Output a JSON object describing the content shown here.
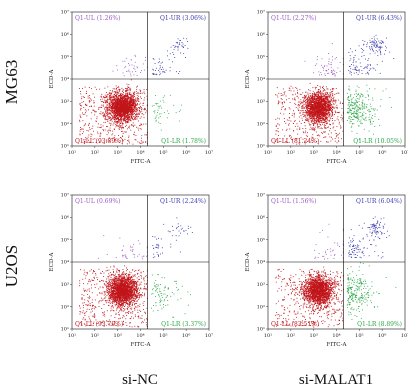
{
  "row_labels": [
    "MG63",
    "U2OS"
  ],
  "column_labels": [
    "si-NC",
    "si-MALAT1"
  ],
  "colors": {
    "UL": "#9b59c5",
    "UR": "#3c3cb0",
    "LL": "#c0151a",
    "LR": "#2ea84a",
    "gate": "#000000",
    "frame": "#333333"
  },
  "chart_data": [
    {
      "type": "scatter",
      "title": "",
      "row": "MG63",
      "column": "si-NC",
      "xlabel": "FITC-A",
      "ylabel": "ECD-A",
      "x_scale": "log",
      "y_scale": "log",
      "xlim": [
        10,
        10000000
      ],
      "ylim": [
        10,
        10000000
      ],
      "x_ticks": [
        "10¹",
        "10²",
        "10³",
        "10⁴",
        "10⁵",
        "10⁶",
        "10⁷"
      ],
      "y_ticks": [
        "10¹",
        "10²",
        "10³",
        "10⁴",
        "10⁵",
        "10⁶",
        "10⁷"
      ],
      "gate": {
        "x": 20000,
        "y": 10000
      },
      "quadrants": [
        {
          "key": "UL",
          "label": "Q1-UL (1.26%)",
          "percent": 1.26
        },
        {
          "key": "UR",
          "label": "Q1-UR (3.06%)",
          "percent": 3.06
        },
        {
          "key": "LL",
          "label": "Q1-LL (93.89%)",
          "percent": 93.89
        },
        {
          "key": "LR",
          "label": "Q1-LR (1.78%)",
          "percent": 1.78
        }
      ]
    },
    {
      "type": "scatter",
      "title": "",
      "row": "MG63",
      "column": "si-MALAT1",
      "xlabel": "FITC-A",
      "ylabel": "ECD-A",
      "x_scale": "log",
      "y_scale": "log",
      "xlim": [
        10,
        10000000
      ],
      "ylim": [
        10,
        10000000
      ],
      "x_ticks": [
        "10¹",
        "10²",
        "10³",
        "10⁴",
        "10⁵",
        "10⁶",
        "10⁷"
      ],
      "y_ticks": [
        "10¹",
        "10²",
        "10³",
        "10⁴",
        "10⁵",
        "10⁶",
        "10⁷"
      ],
      "gate": {
        "x": 20000,
        "y": 10000
      },
      "quadrants": [
        {
          "key": "UL",
          "label": "Q1-UL (2.27%)",
          "percent": 2.27
        },
        {
          "key": "UR",
          "label": "Q1-UR (6.43%)",
          "percent": 6.43
        },
        {
          "key": "LL",
          "label": "Q1-LL (81.24%)",
          "percent": 81.24
        },
        {
          "key": "LR",
          "label": "Q1-LR (10.05%)",
          "percent": 10.05
        }
      ]
    },
    {
      "type": "scatter",
      "title": "",
      "row": "U2OS",
      "column": "si-NC",
      "xlabel": "FITC-A",
      "ylabel": "ECD-A",
      "x_scale": "log",
      "y_scale": "log",
      "xlim": [
        10,
        10000000
      ],
      "ylim": [
        10,
        10000000
      ],
      "x_ticks": [
        "10¹",
        "10²",
        "10³",
        "10⁴",
        "10⁵",
        "10⁶",
        "10⁷"
      ],
      "y_ticks": [
        "10¹",
        "10²",
        "10³",
        "10⁴",
        "10⁵",
        "10⁶",
        "10⁷"
      ],
      "gate": {
        "x": 20000,
        "y": 10000
      },
      "quadrants": [
        {
          "key": "UL",
          "label": "Q1-UL (0.69%)",
          "percent": 0.69
        },
        {
          "key": "UR",
          "label": "Q1-UR (2.24%)",
          "percent": 2.24
        },
        {
          "key": "LL",
          "label": "Q1-LL (93.70%)",
          "percent": 93.7
        },
        {
          "key": "LR",
          "label": "Q1-LR (3.37%)",
          "percent": 3.37
        }
      ]
    },
    {
      "type": "scatter",
      "title": "",
      "row": "U2OS",
      "column": "si-MALAT1",
      "xlabel": "FITC-A",
      "ylabel": "ECD-A",
      "x_scale": "log",
      "y_scale": "log",
      "xlim": [
        10,
        10000000
      ],
      "ylim": [
        10,
        10000000
      ],
      "x_ticks": [
        "10¹",
        "10²",
        "10³",
        "10⁴",
        "10⁵",
        "10⁶",
        "10⁷"
      ],
      "y_ticks": [
        "10¹",
        "10²",
        "10³",
        "10⁴",
        "10⁵",
        "10⁶",
        "10⁷"
      ],
      "gate": {
        "x": 20000,
        "y": 10000
      },
      "quadrants": [
        {
          "key": "UL",
          "label": "Q1-UL (1.56%)",
          "percent": 1.56
        },
        {
          "key": "UR",
          "label": "Q1-UR (6.04%)",
          "percent": 6.04
        },
        {
          "key": "LL",
          "label": "Q1-LL (83.51%)",
          "percent": 83.51
        },
        {
          "key": "LR",
          "label": "Q1-LR (8.89%)",
          "percent": 8.89
        }
      ]
    }
  ]
}
